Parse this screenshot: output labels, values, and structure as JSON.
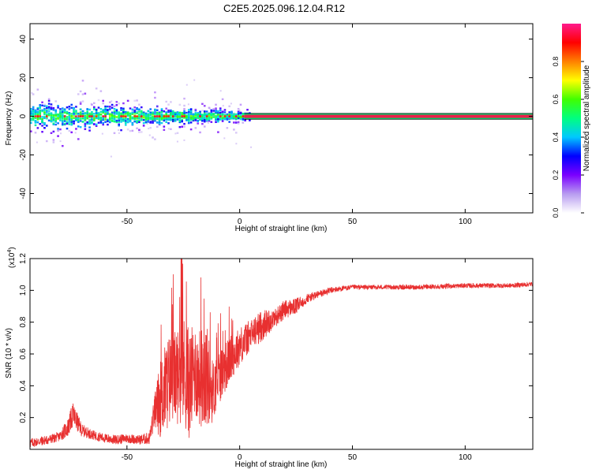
{
  "title": "C2E5.2025.096.12.04.R12",
  "chart_data": [
    {
      "type": "heatmap",
      "xlabel": "Height of straight line (km)",
      "ylabel": "Frequency (Hz)",
      "xlim": [
        -93,
        130
      ],
      "ylim": [
        -50,
        48
      ],
      "xticks": [
        -50,
        0,
        50,
        100
      ],
      "xtick_labels": [
        "-50",
        "0",
        "50",
        "100"
      ],
      "yticks": [
        -40,
        -20,
        0,
        20,
        40
      ],
      "ytick_labels": [
        "-40",
        "-20",
        "0",
        "20",
        "40"
      ],
      "band_start_km": 2,
      "band_halfwidth_hz": 1.5,
      "band_color": "#e8204a",
      "colorbar": {
        "label": "Normalized spectral amplitude",
        "range": [
          0,
          1
        ],
        "ticks": [
          0.0,
          0.2,
          0.4,
          0.6,
          0.8
        ],
        "tick_labels": [
          "0.0",
          "0.2",
          "0.4",
          "0.6",
          "0.8"
        ],
        "colors": [
          "#ffffff",
          "#b89cf0",
          "#7a00ff",
          "#0000ff",
          "#00c8ff",
          "#00ff80",
          "#40ff00",
          "#ffff00",
          "#ff8000",
          "#ff0000",
          "#ff1a8c"
        ]
      }
    },
    {
      "type": "line",
      "xlabel": "Height of straight line (km)",
      "ylabel": "SNR (10 * v/v)",
      "scale_label": "(x10",
      "scale_exp": "4",
      "scale_close": ")",
      "xlim": [
        -93,
        130
      ],
      "ylim": [
        0,
        1.2
      ],
      "xticks": [
        -50,
        0,
        50,
        100
      ],
      "xtick_labels": [
        "-50",
        "0",
        "50",
        "100"
      ],
      "yticks": [
        0.2,
        0.4,
        0.6,
        0.8,
        1.0,
        1.2
      ],
      "ytick_labels": [
        "0.2",
        "0.4",
        "0.6",
        "0.8",
        "1.0",
        "1.2"
      ],
      "color": "#e83030",
      "series": [
        {
          "x": [
            -93,
            -85,
            -80,
            -76,
            -74,
            -70,
            -65,
            -60,
            -55,
            -50,
            -45,
            -40,
            -38,
            -35,
            -32,
            -30,
            -28,
            -25,
            -22,
            -20,
            -18,
            -15,
            -12,
            -10,
            -5,
            0,
            5,
            10,
            15,
            20,
            25,
            30,
            40,
            50,
            60,
            80,
            100,
            120,
            130
          ],
          "y": [
            0.04,
            0.06,
            0.08,
            0.14,
            0.22,
            0.12,
            0.09,
            0.07,
            0.06,
            0.07,
            0.06,
            0.07,
            0.22,
            0.32,
            0.42,
            0.45,
            0.46,
            0.5,
            0.4,
            0.5,
            0.45,
            0.48,
            0.36,
            0.44,
            0.55,
            0.65,
            0.72,
            0.78,
            0.82,
            0.88,
            0.9,
            0.95,
            1.0,
            1.02,
            1.02,
            1.02,
            1.03,
            1.03,
            1.04
          ],
          "noise": [
            0.03,
            0.03,
            0.03,
            0.06,
            0.08,
            0.04,
            0.03,
            0.03,
            0.03,
            0.03,
            0.03,
            0.04,
            0.1,
            0.25,
            0.3,
            0.28,
            0.3,
            0.35,
            0.35,
            0.3,
            0.3,
            0.35,
            0.2,
            0.18,
            0.15,
            0.12,
            0.1,
            0.1,
            0.06,
            0.06,
            0.05,
            0.03,
            0.02,
            0.015,
            0.015,
            0.015,
            0.015,
            0.015,
            0.015
          ]
        }
      ]
    }
  ]
}
